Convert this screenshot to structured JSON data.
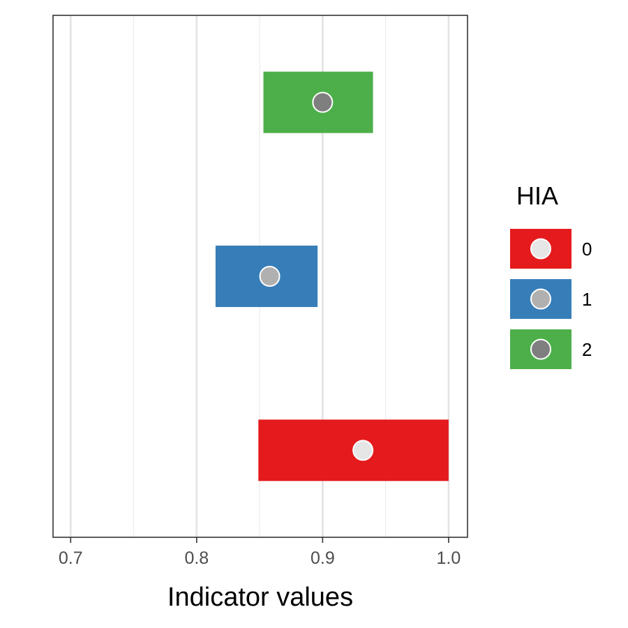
{
  "chart_data": {
    "type": "bar",
    "xlabel": "Indicator values",
    "xlim": [
      0.686,
      1.015
    ],
    "x_ticks": [
      0.7,
      0.8,
      0.9,
      1.0
    ],
    "x_tick_labels": [
      "0.7",
      "0.8",
      "0.9",
      "1.0"
    ],
    "x_minor_gridlines": [
      0.75,
      0.85,
      0.95
    ],
    "grid": true,
    "legend_position": "right",
    "legend": {
      "title": "HIA",
      "entries": [
        {
          "label": "0",
          "fill": "#e41a1c",
          "point": "#e6e6e6"
        },
        {
          "label": "1",
          "fill": "#377eb8",
          "point": "#b0b0b0"
        },
        {
          "label": "2",
          "fill": "#4daf4a",
          "point": "#7f7f7f"
        }
      ]
    },
    "series": [
      {
        "group": "0",
        "low": 0.849,
        "high": 1.0,
        "point": 0.932
      },
      {
        "group": "1",
        "low": 0.815,
        "high": 0.896,
        "point": 0.858
      },
      {
        "group": "2",
        "low": 0.853,
        "high": 0.94,
        "point": 0.9
      }
    ]
  }
}
